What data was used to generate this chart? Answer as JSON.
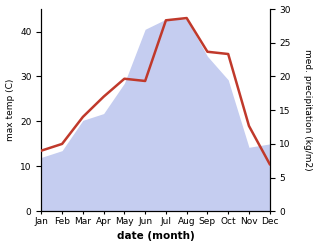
{
  "months": [
    "Jan",
    "Feb",
    "Mar",
    "Apr",
    "May",
    "Jun",
    "Jul",
    "Aug",
    "Sep",
    "Oct",
    "Nov",
    "Dec"
  ],
  "temperature": [
    13.5,
    15.0,
    21.0,
    25.5,
    29.5,
    29.0,
    42.5,
    43.0,
    35.5,
    35.0,
    19.0,
    10.5
  ],
  "precipitation": [
    8.0,
    9.0,
    13.5,
    14.5,
    19.0,
    27.0,
    28.5,
    28.5,
    23.0,
    19.5,
    9.5,
    10.0
  ],
  "temp_color": "#c0392b",
  "precip_fill_color": "#c5cdf0",
  "temp_ylim": [
    0,
    45
  ],
  "precip_ylim": [
    0,
    30
  ],
  "temp_yticks": [
    0,
    10,
    20,
    30,
    40
  ],
  "precip_yticks": [
    0,
    5,
    10,
    15,
    20,
    25,
    30
  ],
  "ylabel_left": "max temp (C)",
  "ylabel_right": "med. precipitation (kg/m2)",
  "xlabel": "date (month)",
  "bg_color": "#ffffff",
  "temp_linewidth": 1.8,
  "label_fontsize": 6.5,
  "xlabel_fontsize": 7.5
}
